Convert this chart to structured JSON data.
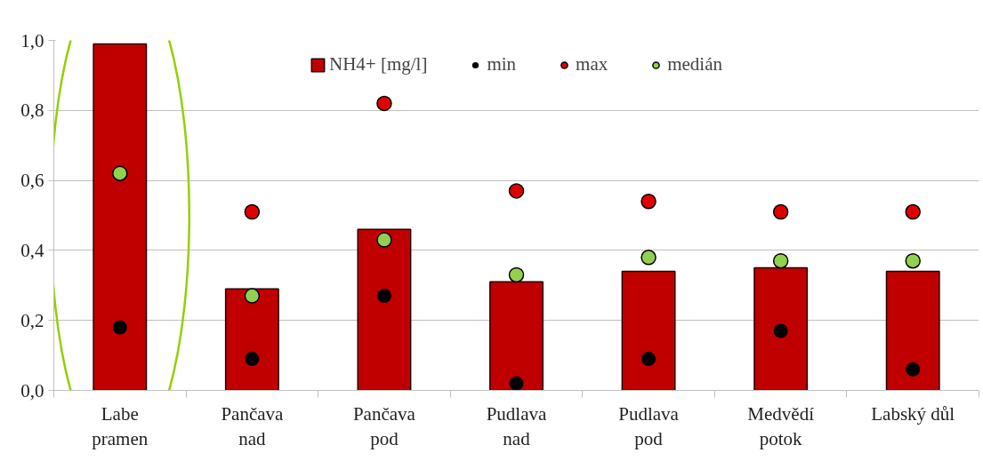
{
  "chart_data": {
    "type": "bar",
    "categories": [
      "Labe\npramen",
      "Pančava\nnad",
      "Pančava\npod",
      "Pudlava\nnad",
      "Pudlava\npod",
      "Medvědí\npotok",
      "Labský důl"
    ],
    "series": [
      {
        "name": "NH4+ [mg/l]",
        "type": "bar",
        "color": "#c00000",
        "values": [
          0.99,
          0.29,
          0.46,
          0.31,
          0.34,
          0.35,
          0.34
        ]
      },
      {
        "name": "min",
        "type": "scatter",
        "color": "#000000",
        "values": [
          0.18,
          0.09,
          0.27,
          0.02,
          0.09,
          0.17,
          0.06
        ]
      },
      {
        "name": "max",
        "type": "scatter",
        "color": "#e00000",
        "values": [
          null,
          0.51,
          0.82,
          0.57,
          0.54,
          0.51,
          0.51
        ]
      },
      {
        "name": "medián",
        "type": "scatter",
        "color": "#92d050",
        "values": [
          0.62,
          0.27,
          0.43,
          0.33,
          0.38,
          0.37,
          0.37
        ]
      }
    ],
    "ylim": [
      0,
      1.0
    ],
    "yticks": [
      {
        "value": 0,
        "label": "0,0"
      },
      {
        "value": 0.2,
        "label": "0,2"
      },
      {
        "value": 0.4,
        "label": "0,4"
      },
      {
        "value": 0.6,
        "label": "0,6"
      },
      {
        "value": 0.8,
        "label": "0,8"
      },
      {
        "value": 1.0,
        "label": "1,0"
      }
    ],
    "grid": "y",
    "legend": "top",
    "marker": "circle"
  }
}
